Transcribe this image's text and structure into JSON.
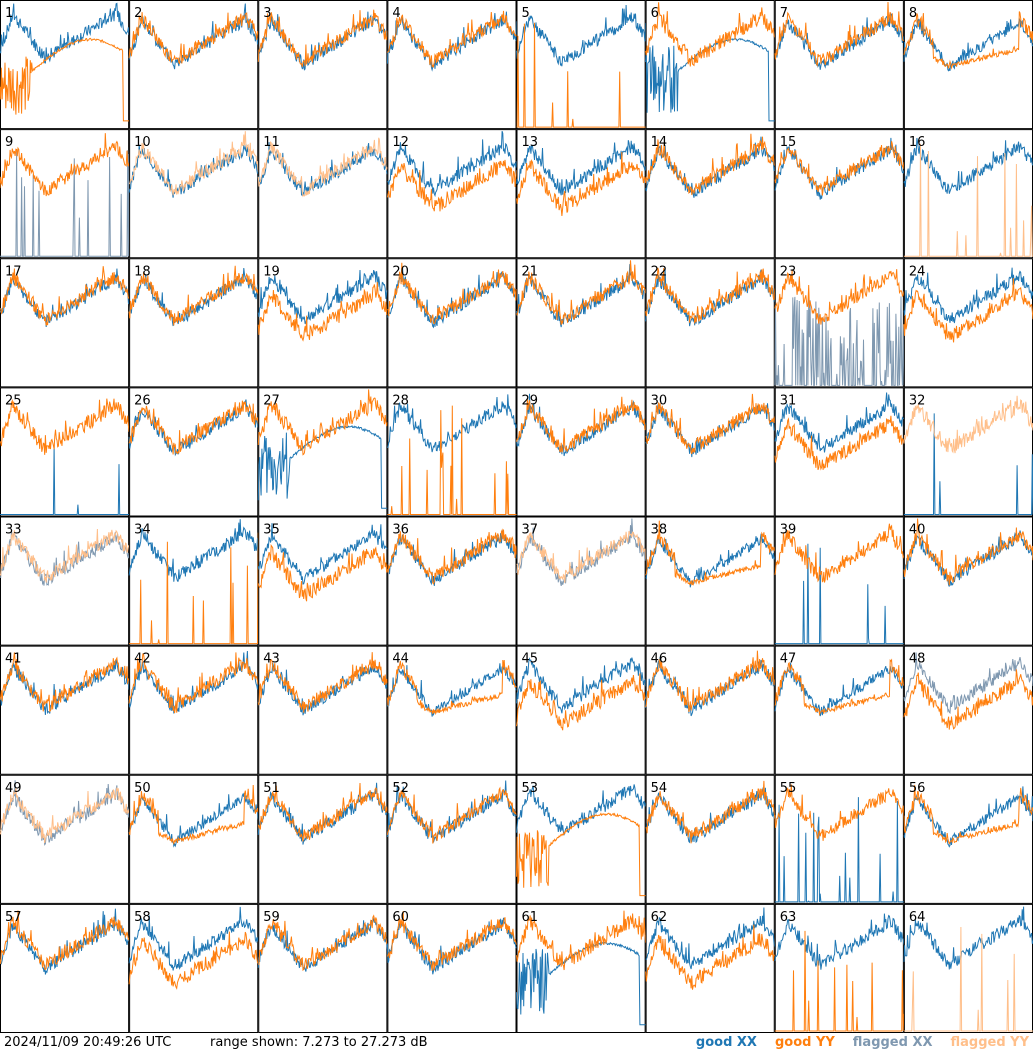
{
  "chart_data": {
    "type": "line",
    "description_units": "dB",
    "ylim": [
      7.273,
      27.273
    ],
    "grid": {
      "rows": 8,
      "cols": 8
    },
    "panels": [
      {
        "label": "1",
        "xx": "good",
        "yy": "good",
        "shape": "broken_yy"
      },
      {
        "label": "2",
        "xx": "good",
        "yy": "good",
        "shape": "normal"
      },
      {
        "label": "3",
        "xx": "good",
        "yy": "good",
        "shape": "normal"
      },
      {
        "label": "4",
        "xx": "good",
        "yy": "good",
        "shape": "normal"
      },
      {
        "label": "5",
        "xx": "good",
        "yy": "good",
        "shape": "yy_spikes"
      },
      {
        "label": "6",
        "xx": "good",
        "yy": "good",
        "shape": "broken_xx"
      },
      {
        "label": "7",
        "xx": "good",
        "yy": "good",
        "shape": "normal"
      },
      {
        "label": "8",
        "xx": "good",
        "yy": "good",
        "shape": "flat"
      },
      {
        "label": "9",
        "xx": "flagged",
        "yy": "good",
        "shape": "xx_spikes"
      },
      {
        "label": "10",
        "xx": "good",
        "yy": "flagged",
        "shape": "normal"
      },
      {
        "label": "11",
        "xx": "good",
        "yy": "flagged",
        "shape": "normal"
      },
      {
        "label": "12",
        "xx": "good",
        "yy": "good",
        "shape": "diverge"
      },
      {
        "label": "13",
        "xx": "good",
        "yy": "good",
        "shape": "diverge"
      },
      {
        "label": "14",
        "xx": "good",
        "yy": "good",
        "shape": "normal"
      },
      {
        "label": "15",
        "xx": "good",
        "yy": "good",
        "shape": "normal"
      },
      {
        "label": "16",
        "xx": "good",
        "yy": "flagged",
        "shape": "yy_spikes"
      },
      {
        "label": "17",
        "xx": "good",
        "yy": "good",
        "shape": "normal"
      },
      {
        "label": "18",
        "xx": "good",
        "yy": "good",
        "shape": "normal"
      },
      {
        "label": "19",
        "xx": "good",
        "yy": "good",
        "shape": "diverge"
      },
      {
        "label": "20",
        "xx": "good",
        "yy": "good",
        "shape": "normal"
      },
      {
        "label": "21",
        "xx": "good",
        "yy": "good",
        "shape": "normal"
      },
      {
        "label": "22",
        "xx": "good",
        "yy": "good",
        "shape": "normal"
      },
      {
        "label": "23",
        "xx": "flagged",
        "yy": "good",
        "shape": "xx_noise"
      },
      {
        "label": "24",
        "xx": "good",
        "yy": "good",
        "shape": "diverge"
      },
      {
        "label": "25",
        "xx": "good",
        "yy": "good",
        "shape": "yy_only"
      },
      {
        "label": "26",
        "xx": "good",
        "yy": "good",
        "shape": "normal"
      },
      {
        "label": "27",
        "xx": "good",
        "yy": "good",
        "shape": "broken_xx"
      },
      {
        "label": "28",
        "xx": "good",
        "yy": "good",
        "shape": "yy_spikes"
      },
      {
        "label": "29",
        "xx": "good",
        "yy": "good",
        "shape": "normal"
      },
      {
        "label": "30",
        "xx": "good",
        "yy": "good",
        "shape": "normal"
      },
      {
        "label": "31",
        "xx": "good",
        "yy": "good",
        "shape": "diverge"
      },
      {
        "label": "32",
        "xx": "good",
        "yy": "flagged",
        "shape": "yy_only"
      },
      {
        "label": "33",
        "xx": "flagged",
        "yy": "flagged",
        "shape": "normal"
      },
      {
        "label": "34",
        "xx": "good",
        "yy": "good",
        "shape": "xx_only_yy_spikes"
      },
      {
        "label": "35",
        "xx": "good",
        "yy": "good",
        "shape": "diverge"
      },
      {
        "label": "36",
        "xx": "good",
        "yy": "good",
        "shape": "normal"
      },
      {
        "label": "37",
        "xx": "flagged",
        "yy": "flagged",
        "shape": "normal"
      },
      {
        "label": "38",
        "xx": "good",
        "yy": "good",
        "shape": "flat"
      },
      {
        "label": "39",
        "xx": "good",
        "yy": "good",
        "shape": "yy_only"
      },
      {
        "label": "40",
        "xx": "good",
        "yy": "good",
        "shape": "normal"
      },
      {
        "label": "41",
        "xx": "good",
        "yy": "good",
        "shape": "normal"
      },
      {
        "label": "42",
        "xx": "good",
        "yy": "good",
        "shape": "normal"
      },
      {
        "label": "43",
        "xx": "good",
        "yy": "good",
        "shape": "normal"
      },
      {
        "label": "44",
        "xx": "good",
        "yy": "good",
        "shape": "flat"
      },
      {
        "label": "45",
        "xx": "good",
        "yy": "good",
        "shape": "diverge"
      },
      {
        "label": "46",
        "xx": "good",
        "yy": "good",
        "shape": "normal"
      },
      {
        "label": "47",
        "xx": "good",
        "yy": "good",
        "shape": "flat"
      },
      {
        "label": "48",
        "xx": "flagged",
        "yy": "good",
        "shape": "diverge"
      },
      {
        "label": "49",
        "xx": "flagged",
        "yy": "flagged",
        "shape": "normal"
      },
      {
        "label": "50",
        "xx": "good",
        "yy": "good",
        "shape": "flat"
      },
      {
        "label": "51",
        "xx": "good",
        "yy": "good",
        "shape": "normal"
      },
      {
        "label": "52",
        "xx": "good",
        "yy": "good",
        "shape": "normal"
      },
      {
        "label": "53",
        "xx": "good",
        "yy": "good",
        "shape": "broken_yy"
      },
      {
        "label": "54",
        "xx": "good",
        "yy": "good",
        "shape": "normal"
      },
      {
        "label": "55",
        "xx": "good",
        "yy": "good",
        "shape": "xx_spikes"
      },
      {
        "label": "56",
        "xx": "good",
        "yy": "good",
        "shape": "flat"
      },
      {
        "label": "57",
        "xx": "good",
        "yy": "good",
        "shape": "normal"
      },
      {
        "label": "58",
        "xx": "good",
        "yy": "good",
        "shape": "diverge"
      },
      {
        "label": "59",
        "xx": "good",
        "yy": "good",
        "shape": "normal"
      },
      {
        "label": "60",
        "xx": "good",
        "yy": "good",
        "shape": "normal"
      },
      {
        "label": "61",
        "xx": "good",
        "yy": "good",
        "shape": "broken_xx"
      },
      {
        "label": "62",
        "xx": "good",
        "yy": "good",
        "shape": "diverge"
      },
      {
        "label": "63",
        "xx": "good",
        "yy": "good",
        "shape": "yy_spikes"
      },
      {
        "label": "64",
        "xx": "good",
        "yy": "flagged",
        "shape": "xx_only_yy_spikes"
      }
    ]
  },
  "footer": {
    "timestamp": "2024/11/09 20:49:26 UTC",
    "range_label": "range shown: 7.273 to 27.273 dB"
  },
  "legend": [
    {
      "label": "good XX",
      "color": "#1f77b4"
    },
    {
      "label": "good YY",
      "color": "#ff7f0e"
    },
    {
      "label": "flagged XX",
      "color": "#7f98b0"
    },
    {
      "label": "flagged YY",
      "color": "#ffbf8a"
    }
  ],
  "colors": {
    "good_xx": "#1f77b4",
    "good_yy": "#ff7f0e",
    "flagged_xx": "#7f98b0",
    "flagged_yy": "#ffbf8a"
  }
}
